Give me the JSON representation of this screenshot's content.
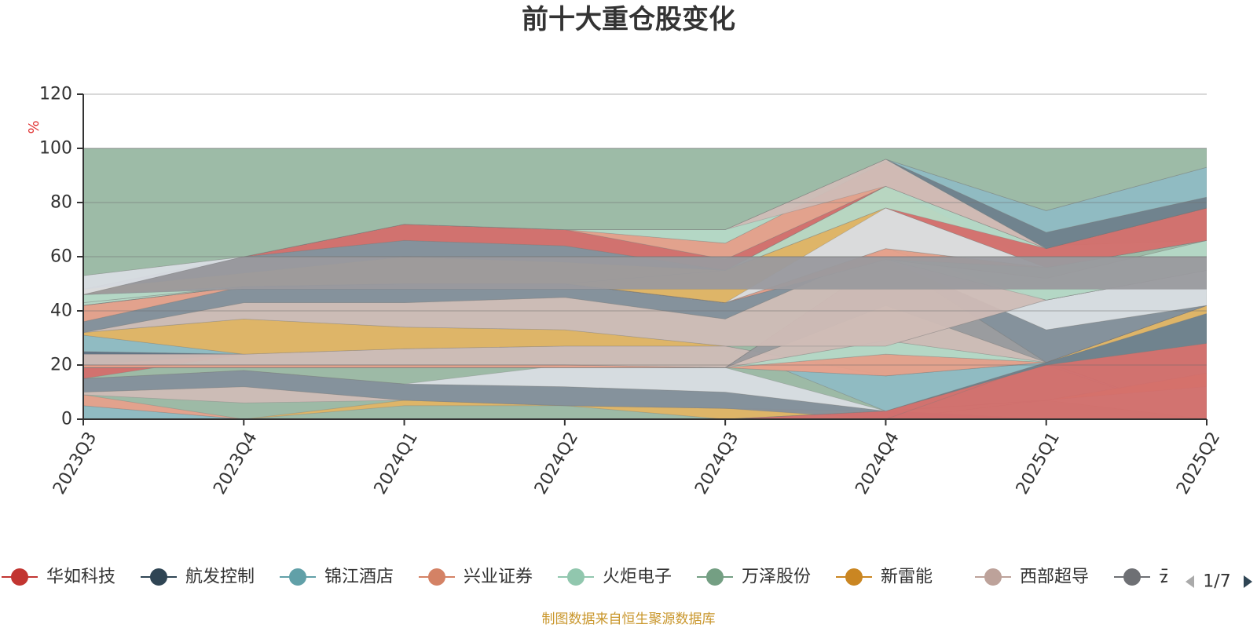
{
  "chart_data": {
    "type": "area",
    "title": "前十大重仓股变化",
    "ylabel": "%",
    "ylim": [
      0,
      120
    ],
    "yticks": [
      0,
      20,
      40,
      60,
      80,
      100,
      120
    ],
    "categories": [
      "2023Q3",
      "2023Q4",
      "2024Q1",
      "2024Q2",
      "2024Q3",
      "2024Q4",
      "2025Q1",
      "2025Q2"
    ],
    "grid": true,
    "legend_position": "bottom",
    "legend_page": "1/7",
    "background_band": {
      "from": 0,
      "to": 100,
      "color": "#9DBAA6"
    },
    "bands": [
      {
        "color": "#8FBAC3",
        "lower": [
          0,
          0,
          0,
          0,
          0,
          3,
          20,
          0
        ],
        "upper": [
          5,
          0,
          0,
          0,
          0,
          3,
          21,
          0
        ]
      },
      {
        "color": "#E6A08B",
        "lower": [
          5,
          0,
          0,
          0,
          0,
          3,
          21,
          0
        ],
        "upper": [
          9,
          0,
          0,
          0,
          0,
          3,
          21,
          0
        ]
      },
      {
        "color": "#E2B464",
        "lower": [
          0,
          0,
          5,
          5,
          0,
          3,
          7,
          12
        ],
        "upper": [
          0,
          0,
          7,
          5,
          4,
          3,
          7,
          17
        ]
      },
      {
        "color": "#CFBCB6",
        "lower": [
          9,
          6,
          7,
          5,
          4,
          3,
          7,
          17
        ],
        "upper": [
          10,
          12,
          7,
          5,
          4,
          3,
          7,
          17
        ]
      },
      {
        "color": "#848F9B",
        "lower": [
          10,
          12,
          7,
          5,
          4,
          0,
          0,
          0
        ],
        "upper": [
          15,
          18,
          13,
          12,
          10,
          3,
          0,
          0
        ]
      },
      {
        "color": "#D9DDE3",
        "lower": [
          15,
          18,
          13,
          12,
          10,
          3,
          0,
          0
        ],
        "upper": [
          15,
          18,
          13,
          20,
          19,
          3,
          0,
          0
        ]
      },
      {
        "color": "#B5D8C6",
        "lower": [
          0,
          0,
          0,
          0,
          0,
          0,
          7,
          0
        ],
        "upper": [
          0,
          0,
          0,
          0,
          0,
          0,
          7,
          12
        ]
      },
      {
        "color": "#D46E6B",
        "lower": [
          0,
          0,
          0,
          0,
          0,
          0,
          0,
          0
        ],
        "upper": [
          0,
          0,
          0,
          0,
          0,
          3,
          20,
          28
        ]
      },
      {
        "color": "#6E7F8C",
        "lower": [
          0,
          0,
          0,
          0,
          0,
          3,
          20,
          28
        ],
        "upper": [
          0,
          0,
          0,
          0,
          0,
          3,
          21,
          39
        ]
      },
      {
        "color": "#E2B464",
        "lower": [
          0,
          0,
          0,
          0,
          0,
          0,
          21,
          39
        ],
        "upper": [
          0,
          0,
          0,
          0,
          0,
          0,
          21,
          42
        ]
      },
      {
        "color": "#D46E6B",
        "lower": [
          15,
          24,
          26,
          27,
          27,
          3,
          21,
          42
        ],
        "upper": [
          20,
          24,
          26,
          27,
          27,
          3,
          21,
          42
        ]
      },
      {
        "color": "#5D7084",
        "lower": [
          20,
          24,
          26,
          27,
          27,
          16,
          21,
          42
        ],
        "upper": [
          25,
          24,
          26,
          27,
          27,
          16,
          21,
          42
        ]
      },
      {
        "color": "#8FBAC3",
        "lower": [
          25,
          24,
          26,
          27,
          27,
          3,
          21,
          42
        ],
        "upper": [
          31,
          24,
          26,
          27,
          27,
          16,
          21,
          42
        ]
      },
      {
        "color": "#CFBCB6",
        "lower": [
          20,
          20,
          20,
          20,
          19,
          16,
          21,
          42
        ],
        "upper": [
          24,
          24,
          26,
          27,
          27,
          16,
          21,
          42
        ]
      },
      {
        "color": "#E6A08B",
        "lower": [
          19,
          19,
          19,
          19,
          19,
          16,
          21,
          42
        ],
        "upper": [
          20,
          20,
          20,
          20,
          19,
          24,
          21,
          42
        ]
      },
      {
        "color": "#B5D8C6",
        "lower": [
          19,
          19,
          19,
          19,
          19,
          24,
          21,
          42
        ],
        "upper": [
          19,
          19,
          19,
          19,
          19,
          29,
          21,
          42
        ]
      },
      {
        "color": "#CFBCB6",
        "lower": [
          19,
          19,
          19,
          19,
          19,
          29,
          21,
          42
        ],
        "upper": [
          19,
          19,
          19,
          19,
          19,
          42,
          21,
          42
        ]
      },
      {
        "color": "#9A9A9E",
        "lower": [
          19,
          19,
          19,
          19,
          19,
          42,
          21,
          42
        ],
        "upper": [
          19,
          19,
          19,
          19,
          19,
          59,
          21,
          42
        ]
      },
      {
        "color": "#848F9B",
        "lower": [
          19,
          19,
          19,
          19,
          19,
          59,
          21,
          42
        ],
        "upper": [
          19,
          19,
          19,
          19,
          19,
          59,
          33,
          42
        ]
      },
      {
        "color": "#D9DDE3",
        "lower": [
          19,
          19,
          19,
          19,
          19,
          59,
          33,
          42
        ],
        "upper": [
          19,
          19,
          19,
          19,
          19,
          59,
          44,
          55
        ]
      },
      {
        "color": "#E2B464",
        "lower": [
          31,
          24,
          26,
          27,
          27,
          27,
          44,
          55
        ],
        "upper": [
          32,
          37,
          34,
          33,
          27,
          27,
          44,
          55
        ]
      },
      {
        "color": "#CFBCB6",
        "lower": [
          32,
          37,
          34,
          33,
          27,
          27,
          44,
          55
        ],
        "upper": [
          32,
          43,
          43,
          45,
          37,
          63,
          44,
          55
        ]
      },
      {
        "color": "#848F9B",
        "lower": [
          32,
          43,
          43,
          45,
          37,
          63,
          44,
          55
        ],
        "upper": [
          36,
          49,
          50,
          50,
          43,
          63,
          44,
          55
        ]
      },
      {
        "color": "#E6A08B",
        "lower": [
          36,
          49,
          50,
          50,
          43,
          63,
          44,
          55
        ],
        "upper": [
          42,
          49,
          50,
          50,
          43,
          63,
          44,
          55
        ]
      },
      {
        "color": "#B5D8C6",
        "lower": [
          42,
          49,
          50,
          50,
          43,
          63,
          44,
          55
        ],
        "upper": [
          46,
          49,
          50,
          50,
          43,
          63,
          44,
          55
        ]
      },
      {
        "color": "#B5D8C6",
        "lower": [
          42,
          49,
          50,
          50,
          43,
          59,
          44,
          55
        ],
        "upper": [
          42,
          49,
          50,
          50,
          43,
          59,
          52,
          66
        ]
      },
      {
        "color": "#9DBAA6",
        "lower": [
          42,
          49,
          50,
          50,
          43,
          59,
          52,
          66
        ],
        "upper": [
          42,
          49,
          50,
          50,
          43,
          59,
          56,
          66
        ]
      },
      {
        "color": "#E6A08B",
        "lower": [
          42,
          49,
          50,
          50,
          43,
          59,
          56,
          66
        ],
        "upper": [
          42,
          49,
          50,
          50,
          43,
          63,
          56,
          66
        ]
      },
      {
        "color": "#E2B464",
        "lower": [
          46,
          49,
          50,
          50,
          43,
          63,
          56,
          66
        ],
        "upper": [
          48,
          54,
          60,
          58,
          55,
          86,
          56,
          66
        ]
      },
      {
        "color": "#D9DDE3",
        "lower": [
          43,
          49,
          50,
          50,
          43,
          63,
          56,
          66
        ],
        "upper": [
          43,
          49,
          50,
          50,
          43,
          78,
          56,
          66
        ]
      },
      {
        "color": "#B5D8C6",
        "lower": [
          43,
          49,
          50,
          50,
          55,
          78,
          56,
          66
        ],
        "upper": [
          43,
          49,
          50,
          50,
          55,
          86,
          64,
          66
        ]
      },
      {
        "color": "#D46E6B",
        "lower": [
          48,
          54,
          60,
          58,
          55,
          78,
          56,
          66
        ],
        "upper": [
          48,
          54,
          60,
          58,
          55,
          78,
          63,
          78
        ]
      },
      {
        "color": "#848F9B",
        "lower": [
          48,
          54,
          60,
          58,
          55,
          86,
          63,
          78
        ],
        "upper": [
          48,
          60,
          66,
          64,
          55,
          86,
          63,
          78
        ]
      },
      {
        "color": "#D46E6B",
        "lower": [
          48,
          60,
          66,
          64,
          55,
          86,
          63,
          78
        ],
        "upper": [
          48,
          60,
          72,
          70,
          59,
          86,
          63,
          78
        ]
      },
      {
        "color": "#E6A08B",
        "lower": [
          48,
          60,
          72,
          70,
          59,
          86,
          63,
          78
        ],
        "upper": [
          48,
          60,
          72,
          70,
          65,
          95,
          63,
          78
        ]
      },
      {
        "color": "#B5D8C6",
        "lower": [
          48,
          60,
          72,
          70,
          65,
          95,
          63,
          78
        ],
        "upper": [
          48,
          60,
          72,
          70,
          70,
          96,
          63,
          78
        ]
      },
      {
        "color": "#CFBCB6",
        "lower": [
          48,
          60,
          72,
          70,
          70,
          86,
          63,
          78
        ],
        "upper": [
          48,
          60,
          72,
          70,
          70,
          96,
          63,
          78
        ]
      },
      {
        "color": "#6E7F8C",
        "lower": [
          48,
          60,
          72,
          70,
          70,
          96,
          63,
          78
        ],
        "upper": [
          48,
          60,
          72,
          70,
          70,
          96,
          69,
          82
        ]
      },
      {
        "color": "#8FBAC3",
        "lower": [
          48,
          60,
          72,
          70,
          70,
          96,
          69,
          82
        ],
        "upper": [
          48,
          60,
          72,
          70,
          70,
          96,
          77,
          93
        ]
      },
      {
        "color": "#D9DDE3",
        "lower": [
          46,
          60,
          72,
          70,
          70,
          96,
          77,
          93
        ],
        "upper": [
          53,
          60,
          72,
          70,
          70,
          96,
          77,
          93
        ]
      },
      {
        "color": "#9A9A9E",
        "lower": [
          46,
          48,
          48,
          48,
          48,
          48,
          48,
          48
        ],
        "upper": [
          46,
          60,
          60,
          60,
          60,
          60,
          60,
          60
        ]
      },
      {
        "color": "#9DBAA6",
        "lower": [
          53,
          60,
          72,
          70,
          70,
          96,
          77,
          93
        ],
        "upper": [
          100,
          100,
          100,
          100,
          100,
          100,
          100,
          100
        ]
      }
    ],
    "series": [
      {
        "name": "华如科技",
        "color": "#C23531"
      },
      {
        "name": "航发控制",
        "color": "#2F4554"
      },
      {
        "name": "锦江酒店",
        "color": "#61A0A8"
      },
      {
        "name": "兴业证券",
        "color": "#D48265"
      },
      {
        "name": "火炬电子",
        "color": "#91C7AE"
      },
      {
        "name": "万泽股份",
        "color": "#749F83"
      },
      {
        "name": "新雷能",
        "color": "#CA8622"
      },
      {
        "name": "西部超导",
        "color": "#BDA29A"
      },
      {
        "name": "云铝股份",
        "color": "#6E7074"
      }
    ],
    "source_note": "制图数据来自恒生聚源数据库",
    "unit_color": "#E03030",
    "source_color": "#C9962B"
  }
}
